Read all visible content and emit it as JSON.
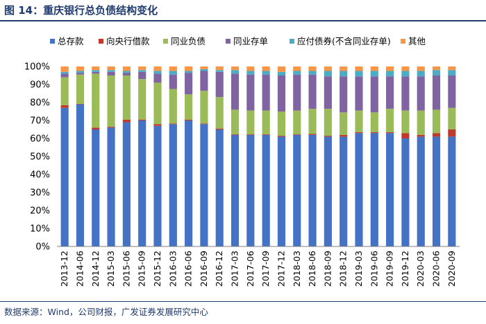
{
  "header": {
    "title": "图 14：重庆银行总负债结构变化"
  },
  "footer": {
    "source": "数据来源：Wind，公司财报，广发证券发展研究中心"
  },
  "chart_data": {
    "type": "bar",
    "stacked": true,
    "title": "重庆银行总负债结构变化",
    "xlabel": "",
    "ylabel": "",
    "ylim": [
      0,
      100
    ],
    "ytick_values": [
      0,
      10,
      20,
      30,
      40,
      50,
      60,
      70,
      80,
      90,
      100
    ],
    "ytick_labels": [
      "0%",
      "10%",
      "20%",
      "30%",
      "40%",
      "50%",
      "60%",
      "70%",
      "80%",
      "90%",
      "100%"
    ],
    "legend_position": "top",
    "categories": [
      "2013-12",
      "2014-06",
      "2014-12",
      "2015-03",
      "2015-06",
      "2015-09",
      "2015-12",
      "2016-03",
      "2016-06",
      "2016-09",
      "2016-12",
      "2017-03",
      "2017-06",
      "2017-09",
      "2017-12",
      "2018-03",
      "2018-06",
      "2018-09",
      "2018-12",
      "2019-03",
      "2019-06",
      "2019-09",
      "2019-12",
      "2020-03",
      "2020-06",
      "2020-09"
    ],
    "series": [
      {
        "name": "总存款",
        "color": "#4472C4",
        "values": [
          77,
          79,
          65,
          66,
          69,
          70,
          67,
          68,
          70,
          68,
          65,
          62,
          62,
          62,
          61,
          62,
          62,
          61,
          61,
          63,
          63,
          63,
          60,
          61,
          61,
          61
        ]
      },
      {
        "name": "向央行借款",
        "color": "#C0392B",
        "values": [
          1.5,
          0.3,
          1,
          0.5,
          1.5,
          0.5,
          1,
          0.3,
          0.5,
          0.3,
          0.5,
          0.3,
          0.3,
          0.3,
          0.5,
          0.3,
          0.5,
          0.5,
          1,
          0.5,
          0.5,
          0.5,
          3,
          1,
          2,
          4
        ]
      },
      {
        "name": "同业负债",
        "color": "#9BBB59",
        "values": [
          15.5,
          16.2,
          30,
          28.5,
          24.5,
          22.5,
          23,
          19.2,
          14,
          18.2,
          17.5,
          13.7,
          13.2,
          13.2,
          13.5,
          13.2,
          14,
          15,
          12.5,
          12,
          11,
          13,
          12.5,
          13.5,
          13,
          12
        ]
      },
      {
        "name": "同业存单",
        "color": "#8064A2",
        "values": [
          2,
          1,
          1,
          2,
          1.5,
          4,
          5,
          8,
          12,
          11,
          14,
          20,
          20,
          20,
          20,
          20,
          19,
          18,
          20,
          19,
          20,
          18,
          19,
          19,
          19,
          18
        ]
      },
      {
        "name": "应付债券(不含同业存单)",
        "color": "#4BACC6",
        "values": [
          1,
          1,
          1,
          1,
          1,
          1,
          1.5,
          2,
          1,
          1,
          1,
          2,
          2,
          2,
          2,
          2,
          2,
          3,
          3,
          3,
          3,
          3,
          3,
          3,
          3,
          3
        ]
      },
      {
        "name": "其他",
        "color": "#F79646",
        "values": [
          3,
          2.5,
          2,
          2,
          2.5,
          2,
          2.5,
          2.5,
          2.5,
          1.5,
          2,
          2,
          2.5,
          2.5,
          3,
          2.5,
          2.5,
          2.5,
          2.5,
          2.5,
          2.5,
          2.5,
          2.5,
          2.5,
          2,
          2
        ]
      }
    ]
  }
}
